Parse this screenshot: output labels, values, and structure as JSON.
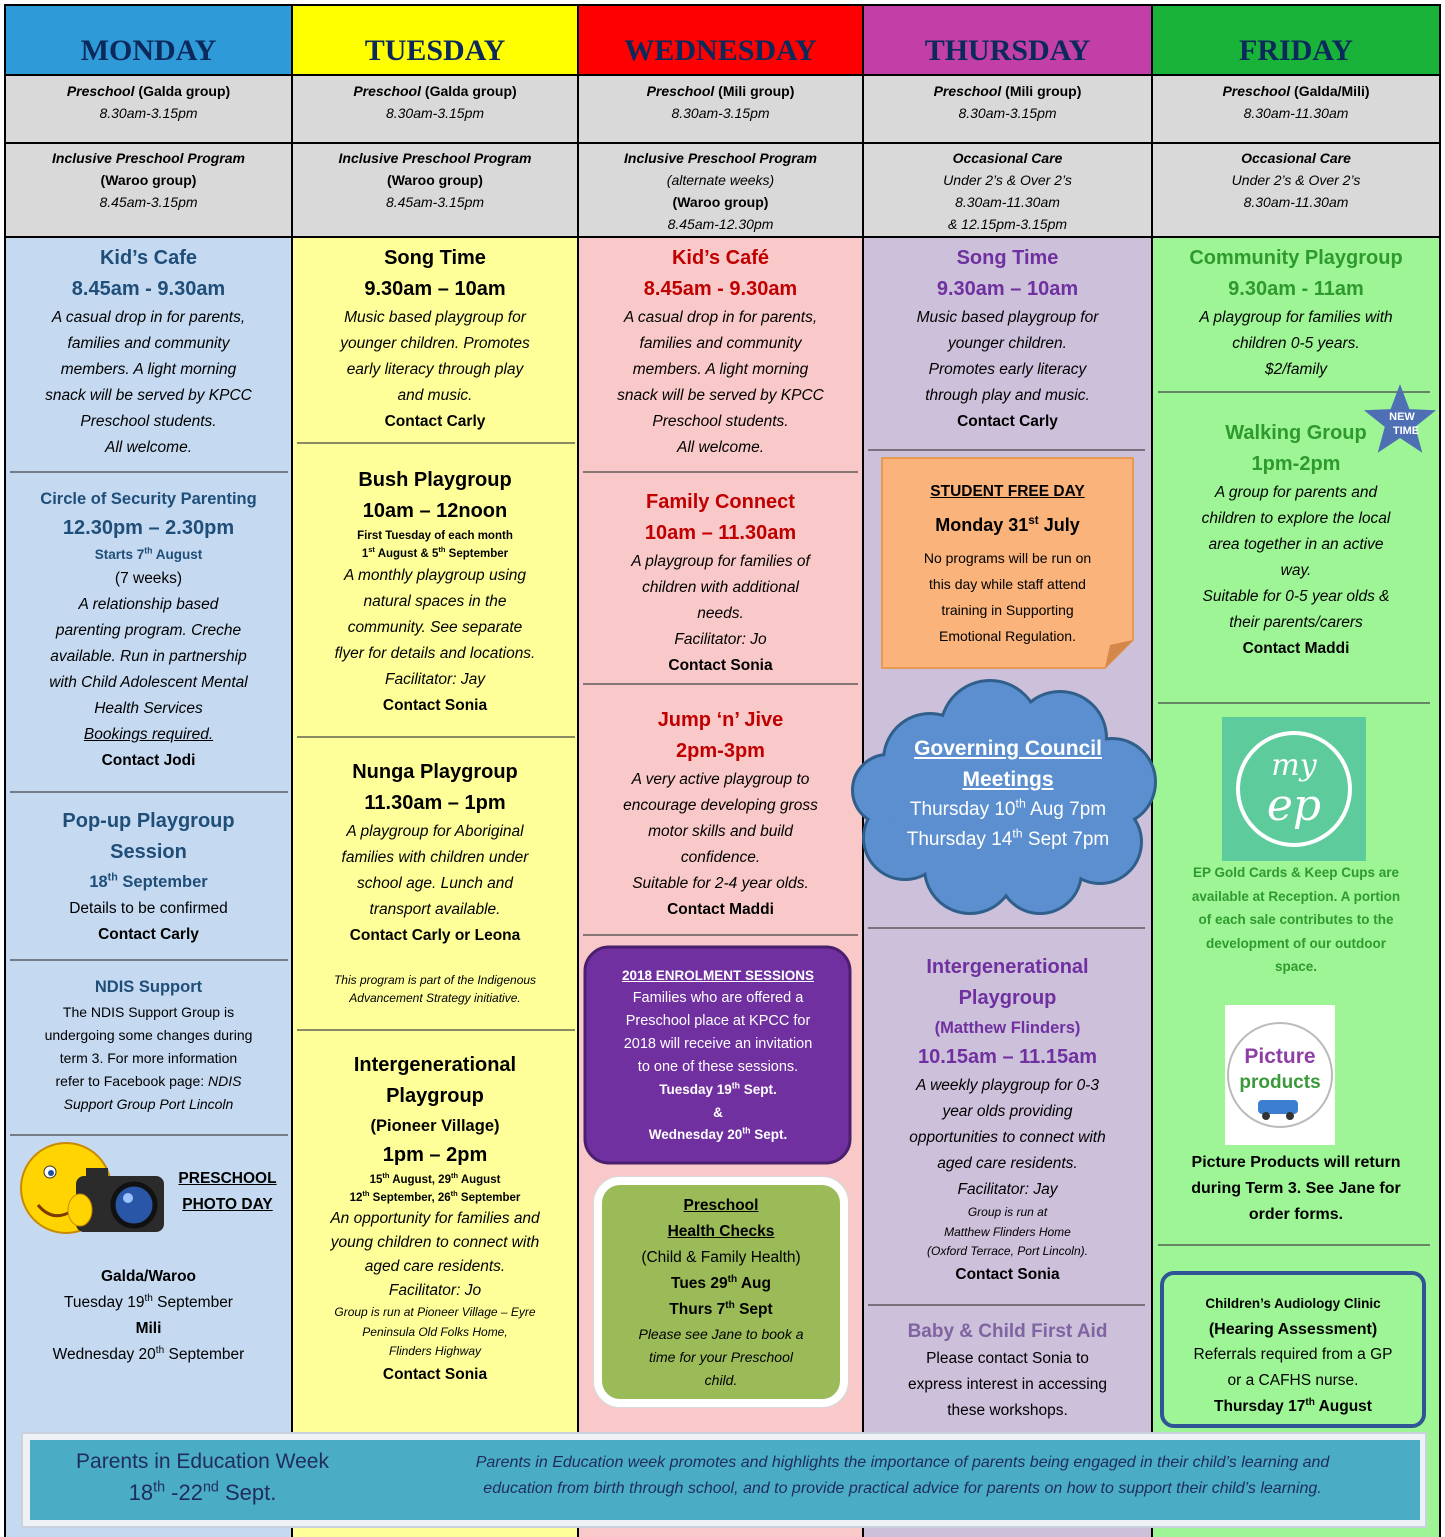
{
  "header": {
    "days": [
      "MONDAY",
      "TUESDAY",
      "WEDNESDAY",
      "THURSDAY",
      "FRIDAY"
    ],
    "preschool": [
      [
        [
          "Preschool",
          " (Galda group)"
        ],
        "8.30am-3.15pm"
      ],
      [
        [
          "Preschool",
          " (Galda group)"
        ],
        "8.30am-3.15pm"
      ],
      [
        [
          "Preschool",
          " (Mili group)"
        ],
        "8.30am-3.15pm"
      ],
      [
        [
          "Preschool",
          " (Mili group)"
        ],
        "8.30am-3.15pm"
      ],
      [
        [
          "Preschool",
          " (Galda/Mili)"
        ],
        "8.30am-11.30am"
      ]
    ],
    "inclusive": [
      [
        "Inclusive Preschool Program",
        "(Waroo group)",
        "8.45am-3.15pm"
      ],
      [
        "Inclusive Preschool Program",
        "(Waroo group)",
        "8.45am-3.15pm"
      ],
      [
        "Inclusive Preschool Program",
        "(alternate weeks)",
        "(Waroo group)",
        "8.45am-12.30pm"
      ],
      [
        "Occasional Care",
        "Under 2’s & Over 2’s",
        "8.30am-11.30am",
        "& 12.15pm-3.15pm"
      ],
      [
        "Occasional Care",
        "Under 2’s & Over 2’s",
        "8.30am-11.30am"
      ]
    ]
  },
  "monday": [
    [
      "Kid’s Cafe",
      "8.45am - 9.30am",
      "A casual drop in for parents,",
      "families and community",
      "members. A light morning",
      "snack will be served by KPCC",
      "Preschool students.",
      "All welcome."
    ],
    [
      "Circle of Security Parenting",
      "12.30pm – 2.30pm",
      [
        "Starts 7",
        "th",
        " August"
      ],
      "(7 weeks)",
      "A relationship based",
      "parenting program. Creche",
      "available. Run in partnership",
      "with Child Adolescent Mental",
      "Health Services",
      "Bookings required.",
      "Contact Jodi"
    ],
    [
      "Pop-up Playgroup",
      "Session",
      [
        "18",
        "th",
        " September"
      ],
      "Details to be confirmed",
      "Contact Carly"
    ],
    [
      "NDIS Support",
      "The NDIS Support Group is",
      "undergoing some changes during",
      "term 3. For more information",
      [
        "refer to Facebook page: ",
        "NDIS"
      ],
      "Support Group Port Lincoln"
    ],
    [
      "PRESCHOOL",
      "PHOTO DAY"
    ],
    [
      "Galda/Waroo",
      [
        "Tuesday 19",
        "th",
        " September"
      ],
      "Mili",
      [
        "Wednesday 20",
        "th",
        " September"
      ]
    ]
  ],
  "tuesday": [
    [
      "Song Time",
      "9.30am – 10am",
      "Music based playgroup for",
      "younger children. Promotes",
      "early literacy through play",
      "and music.",
      "Contact Carly"
    ],
    [
      "Bush Playgroup",
      "10am – 12noon",
      "First Tuesday of each month",
      [
        "1",
        "st",
        " August & 5",
        "th",
        " September"
      ],
      "A monthly playgroup using",
      "natural spaces in the",
      "community. See separate",
      "flyer for details and locations.",
      "Facilitator: Jay",
      "Contact Sonia"
    ],
    [
      "Nunga Playgroup",
      "11.30am – 1pm",
      "A playgroup for Aboriginal",
      "families with children under",
      "school age. Lunch and",
      "transport available.",
      "Contact Carly or Leona",
      "This program is part of the Indigenous",
      "Advancement Strategy initiative."
    ],
    [
      "Intergenerational",
      "Playgroup",
      "(Pioneer Village)",
      "1pm – 2pm",
      [
        "15",
        "th",
        " August, 29",
        "th",
        " August"
      ],
      [
        "12",
        "th",
        " September, 26",
        "th",
        " September"
      ],
      "An opportunity for families and",
      "young children to connect with",
      "aged care residents.",
      "Facilitator: Jo",
      "Group is run at Pioneer Village – Eyre",
      "Peninsula Old Folks Home,",
      "Flinders Highway",
      "Contact Sonia"
    ]
  ],
  "wednesday": [
    [
      "Kid’s Café",
      "8.45am - 9.30am",
      "A casual drop in for parents,",
      "families and community",
      "members. A light morning",
      "snack will be served by KPCC",
      "Preschool students.",
      "All welcome."
    ],
    [
      "Family Connect",
      "10am – 11.30am",
      "A playgroup for families of",
      "children with additional",
      "needs.",
      "Facilitator: Jo",
      "Contact Sonia"
    ],
    [
      "Jump ‘n’ Jive",
      "2pm-3pm",
      "A very active playgroup to",
      "encourage developing gross",
      "motor skills and build",
      "confidence.",
      "Suitable for 2-4 year olds.",
      "Contact Maddi"
    ],
    [
      "2018 ENROLMENT SESSIONS",
      "Families who are offered a",
      "Preschool place at KPCC for",
      "2018 will receive an invitation",
      "to one of these sessions.",
      [
        "Tuesday 19",
        "th",
        " Sept."
      ],
      "&",
      [
        "Wednesday 20",
        "th",
        " Sept."
      ]
    ],
    [
      "Preschool",
      "Health Checks",
      "(Child & Family Health)",
      [
        "Tues 29",
        "th",
        " Aug"
      ],
      [
        "Thurs 7",
        "th",
        " Sept"
      ],
      "Please see Jane to book a",
      "time for your Preschool",
      "child."
    ]
  ],
  "thursday": [
    [
      "Song Time",
      "9.30am – 10am",
      "Music based playgroup for",
      "younger children.",
      "Promotes early literacy",
      "through play and music.",
      "Contact Carly"
    ],
    [
      "STUDENT FREE DAY",
      [
        "Monday 31",
        "st",
        " July"
      ],
      "No programs will be run on",
      "this day while staff attend",
      "training in Supporting",
      "Emotional Regulation."
    ],
    [
      "Governing Council",
      "Meetings",
      [
        "Thursday 10",
        "th",
        " Aug 7pm"
      ],
      [
        "Thursday 14",
        "th",
        " Sept 7pm"
      ]
    ],
    [
      "Intergenerational",
      "Playgroup",
      "(Matthew Flinders)",
      "10.15am – 11.15am",
      "A weekly playgroup for 0-3",
      "year olds providing",
      "opportunities to connect with",
      "aged care residents.",
      "Facilitator: Jay",
      "Group is run at",
      "Matthew Flinders Home",
      "(Oxford Terrace, Port Lincoln).",
      "Contact Sonia"
    ],
    [
      "Baby & Child First Aid",
      "Please contact Sonia to",
      "express interest in accessing",
      "these workshops."
    ]
  ],
  "friday": [
    [
      "Community Playgroup",
      "9.30am - 11am",
      "A playgroup for families with",
      "children 0-5 years.",
      "$2/family"
    ],
    [
      "Walking Group",
      "1pm-2pm",
      "A group for parents and",
      "children to explore the local",
      "area together in an active",
      "way.",
      "Suitable for 0-5 year olds &",
      "their parents/carers",
      "Contact Maddi"
    ],
    [
      "EP Gold Cards & Keep Cups are",
      "available at Reception. A portion",
      "of each sale contributes to the",
      "development of our outdoor",
      "space."
    ],
    [
      "Picture Products will return",
      "during Term 3. See Jane for",
      "order forms."
    ],
    [
      "Children’s Audiology Clinic",
      "(Hearing Assessment)",
      "Referrals required from a GP",
      "or a CAFHS nurse.",
      [
        "Thursday 17",
        "th",
        " August"
      ]
    ]
  ],
  "badges": {
    "new_time": [
      "NEW",
      "TIME"
    ],
    "my_ep": [
      "my",
      "ep"
    ],
    "picture_products": [
      "Picture",
      "products"
    ]
  },
  "footer": {
    "title": [
      "Parents in Education Week",
      [
        "18",
        "th",
        " -22",
        "nd",
        " Sept."
      ]
    ],
    "text": [
      "Parents in Education week promotes and highlights the importance of parents being engaged in their child’s learning and",
      "education from birth through school, and to provide practical advice for parents on how to support their child’s learning."
    ]
  }
}
